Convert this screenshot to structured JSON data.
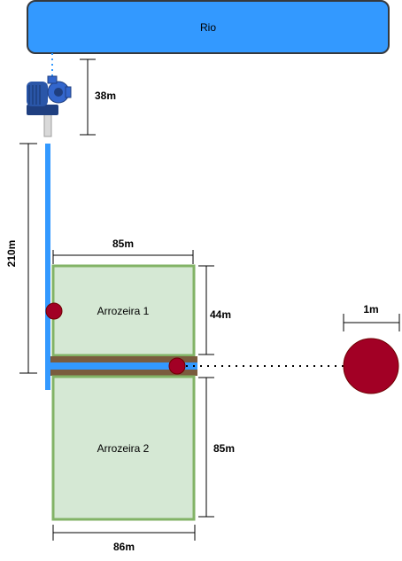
{
  "river": {
    "label": "Rio",
    "color": "#3399ff",
    "border_color": "#36393d"
  },
  "pump": {
    "icon": "water-pump-icon"
  },
  "pipe": {
    "color": "#3399ff"
  },
  "fields": [
    {
      "label": "Arrozeira 1"
    },
    {
      "label": "Arrozeira 2"
    }
  ],
  "field_style": {
    "fill": "#d5e8d4",
    "stroke": "#82b366"
  },
  "levee_color": "#7a5c3e",
  "markers": {
    "color": "#a20025",
    "border_color": "#6f0000"
  },
  "dimensions": {
    "pump_height": "38m",
    "main_pipe_length": "210m",
    "field1_width": "85m",
    "field1_height": "44m",
    "field2_height": "85m",
    "field2_width": "86m",
    "circle_diameter": "1m"
  }
}
